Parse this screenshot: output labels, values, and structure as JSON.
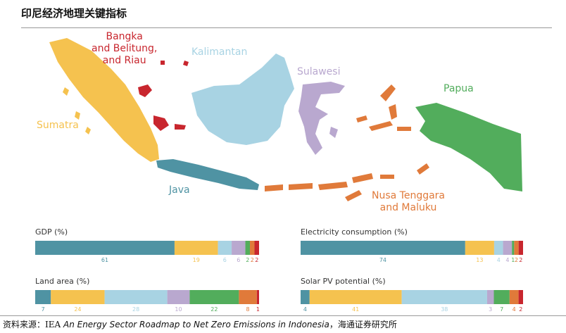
{
  "title": "印尼经济地理关键指标",
  "source": {
    "prefix": "资料来源：IEA ",
    "italic": "An Energy Sector Roadmap to Net Zero Emissions in Indonesia",
    "suffix": "，海通证券研究所"
  },
  "colors": {
    "java": "#4f93a3",
    "sumatra": "#f5c24f",
    "kalimantan": "#a8d3e3",
    "sulawesi": "#b9a8cf",
    "papua": "#52ad5c",
    "nusa": "#e07a3a",
    "bangka": "#c8262e"
  },
  "regions": {
    "sumatra": "Sumatra",
    "bangka": [
      "Bangka",
      "and Belitung,",
      "and Riau"
    ],
    "kalimantan": "Kalimantan",
    "sulawesi": "Sulawesi",
    "papua": "Papua",
    "java": "Java",
    "nusa": [
      "Nusa Tenggara",
      "and Maluku"
    ]
  },
  "chart_data": [
    {
      "type": "bar",
      "title": "GDP (%)",
      "categories": [
        "Java",
        "Sumatra",
        "Kalimantan",
        "Sulawesi",
        "Papua",
        "Nusa Tenggara and Maluku",
        "Bangka and Belitung, and Riau"
      ],
      "values": [
        61,
        19,
        6,
        6,
        2,
        2,
        2
      ]
    },
    {
      "type": "bar",
      "title": "Electricity consumption (%)",
      "categories": [
        "Java",
        "Sumatra",
        "Kalimantan",
        "Sulawesi",
        "Papua",
        "Nusa Tenggara and Maluku",
        "Bangka and Belitung, and Riau"
      ],
      "values": [
        74,
        13,
        4,
        4,
        1,
        2,
        2
      ]
    },
    {
      "type": "bar",
      "title": "Land area (%)",
      "categories": [
        "Java",
        "Sumatra",
        "Kalimantan",
        "Sulawesi",
        "Papua",
        "Nusa Tenggara and Maluku",
        "Bangka and Belitung, and Riau"
      ],
      "values": [
        7,
        24,
        28,
        10,
        22,
        8,
        1
      ]
    },
    {
      "type": "bar",
      "title": "Solar PV potential (%)",
      "categories": [
        "Java",
        "Sumatra",
        "Kalimantan",
        "Sulawesi",
        "Papua",
        "Nusa Tenggara and Maluku",
        "Bangka and Belitung, and Riau"
      ],
      "values": [
        4,
        41,
        38,
        3,
        7,
        4,
        2
      ]
    }
  ]
}
